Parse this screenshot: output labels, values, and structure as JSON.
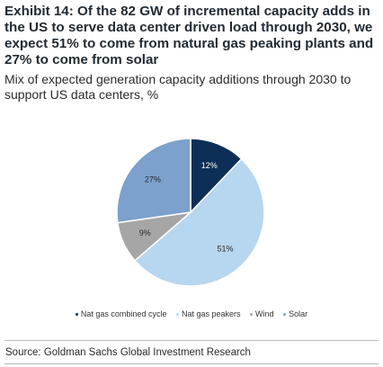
{
  "header": {
    "title": "Exhibit 14: Of the 82 GW of incremental capacity adds in the US to serve data center driven load through 2030, we expect 51% to come from natural gas peaking plants and 27% to come from solar",
    "subtitle": "Mix of expected generation capacity additions through 2030 to support US data centers, %"
  },
  "chart_data": {
    "type": "pie",
    "title": "",
    "start": "12 o'clock",
    "direction": "clockwise",
    "slices": [
      {
        "name": "Nat gas combined cycle",
        "value": 12,
        "label": "12%",
        "color": "#0d2f57",
        "label_color": "#ffffff"
      },
      {
        "name": "Nat gas  peakers",
        "value": 51,
        "label": "51%",
        "color": "#b7d6ef",
        "label_color": "#2b2b2b"
      },
      {
        "name": "Wind",
        "value": 9,
        "label": "9%",
        "color": "#a6a6a6",
        "label_color": "#2b2b2b"
      },
      {
        "name": "Solar",
        "value": 27,
        "label": "27%",
        "color": "#7ba1cc",
        "label_color": "#2b2b2b"
      }
    ],
    "legend": [
      "Nat gas combined cycle",
      "Nat gas  peakers",
      "Wind",
      "Solar"
    ],
    "legend_position": "bottom"
  },
  "footer": {
    "source": "Source: Goldman Sachs Global Investment Research"
  }
}
